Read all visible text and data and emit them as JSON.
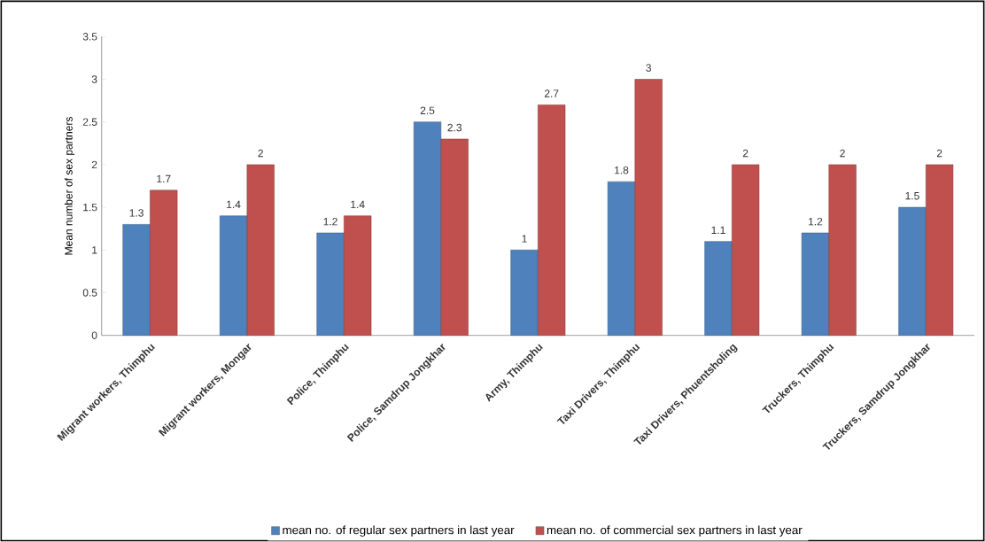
{
  "chart_data": {
    "type": "bar",
    "ylabel": "Mean number of sex partners",
    "categories": [
      "Migrant workers, Thimphu",
      "Migrant workers, Mongar",
      "Police, Thimphu",
      "Police, Samdrup Jongkhar",
      "Army, Thimphu",
      "Taxi Drivers, Thimphu",
      "Taxi Drivers, Phuentsholing",
      "Truckers, Thimphu",
      "Truckers, Samdrup Jongkhar"
    ],
    "series": [
      {
        "name": "mean no. of regular sex partners in last year",
        "color": "#4f81bd",
        "values": [
          1.3,
          1.4,
          1.2,
          2.5,
          1,
          1.8,
          1.1,
          1.2,
          1.5
        ]
      },
      {
        "name": "mean no. of commercial sex partners in last year",
        "color": "#c0504d",
        "values": [
          1.7,
          2,
          1.4,
          2.3,
          2.7,
          3,
          2,
          2,
          2
        ]
      }
    ],
    "ylim": [
      0,
      3.5
    ],
    "yticks": [
      0,
      0.5,
      1,
      1.5,
      2,
      2.5,
      3,
      3.5
    ],
    "data_labels": true,
    "grid": false,
    "legend": "bottom"
  }
}
